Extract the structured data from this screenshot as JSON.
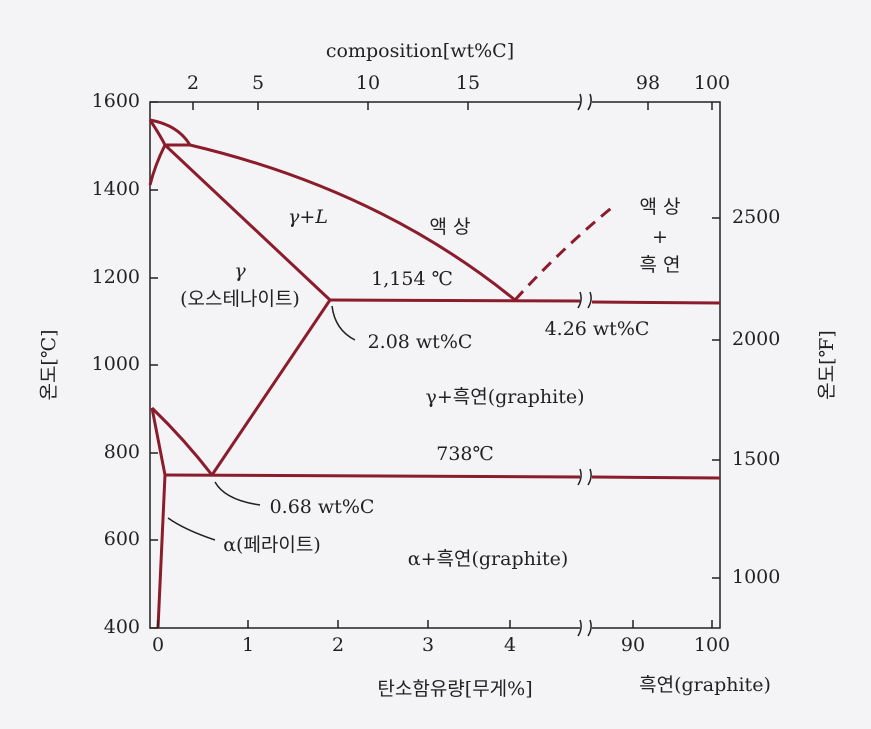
{
  "top_axis": {
    "title": "composition[wt%C]",
    "ticks": [
      2,
      5,
      10,
      15,
      98,
      100
    ]
  },
  "left_axis": {
    "title": "온도[℃]",
    "ticks": [
      1600,
      1400,
      1200,
      1000,
      800,
      600,
      400
    ]
  },
  "right_axis": {
    "title": "온도[℉]",
    "ticks": [
      2500,
      2000,
      1500,
      1000
    ]
  },
  "bottom_axis": {
    "title": "탄소함유량[무게%]",
    "ticks": [
      0,
      1,
      2,
      3,
      4,
      90,
      100
    ],
    "graphite_label": "흑연(graphite)"
  },
  "regions": {
    "gamma_liquid": "γ+L",
    "liquid": "액 상",
    "liquid_graphite_1": "액 상",
    "liquid_graphite_2": "+",
    "liquid_graphite_3": "흑 연",
    "gamma": "γ",
    "austenite": "(오스테나이트)",
    "gamma_graphite": "γ+흑연(graphite)",
    "alpha_graphite": "α+흑연(graphite)"
  },
  "annotations": {
    "eutectic_temp": "1,154 ℃",
    "eutectic_comp": "4.26 wt%C",
    "gamma_max": "2.08 wt%C",
    "eutectoid_temp": "738℃",
    "eutectoid_comp": "0.68 wt%C",
    "ferrite": "α(페라이트)"
  }
}
